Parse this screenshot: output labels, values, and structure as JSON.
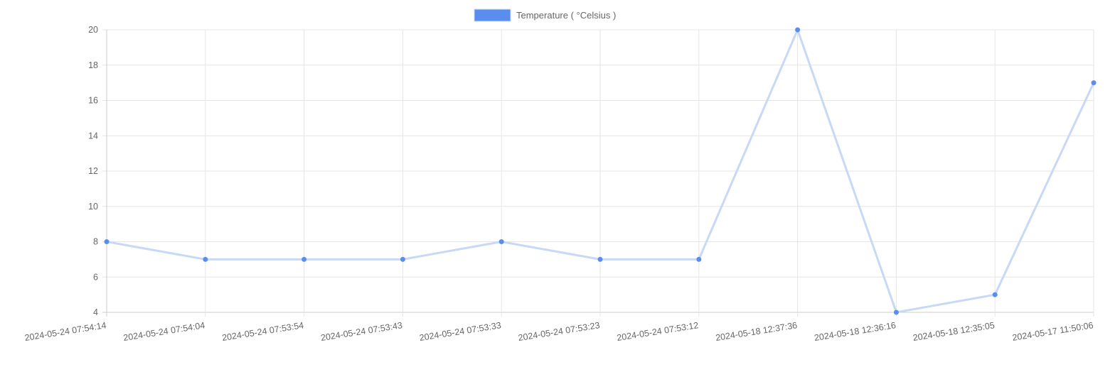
{
  "chart_data": {
    "type": "line",
    "categories": [
      "2024-05-24 07:54:14",
      "2024-05-24 07:54:04",
      "2024-05-24 07:53:54",
      "2024-05-24 07:53:43",
      "2024-05-24 07:53:33",
      "2024-05-24 07:53:23",
      "2024-05-24 07:53:12",
      "2024-05-18 12:37:36",
      "2024-05-18 12:36:16",
      "2024-05-18 12:35:05",
      "2024-05-17 11:50:06"
    ],
    "series": [
      {
        "name": "Temperature ( °Celsius )",
        "values": [
          8,
          7,
          7,
          7,
          8,
          7,
          7,
          20,
          4,
          5,
          17
        ],
        "color": "#5b8def",
        "line_color": "#c7d9f6"
      }
    ],
    "ylim": [
      4,
      20
    ],
    "yticks": [
      4,
      6,
      8,
      10,
      12,
      14,
      16,
      18,
      20
    ],
    "grid": true,
    "legend_position": "top-center"
  }
}
